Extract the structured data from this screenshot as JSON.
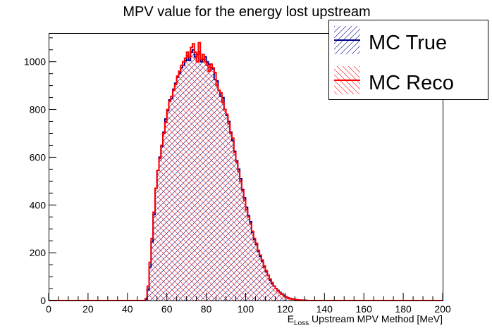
{
  "chart_data": {
    "type": "histogram",
    "title": "MPV value for the energy lost upstream",
    "xlabel": {
      "main": "E",
      "subscript": "Loss",
      "rest": " Upstream MPV Method [MeV]"
    },
    "ylabel": "",
    "xlim": [
      0,
      200
    ],
    "ylim": [
      0,
      1120
    ],
    "x_ticks": [
      0,
      20,
      40,
      60,
      80,
      100,
      120,
      140,
      160,
      180,
      200
    ],
    "y_ticks": [
      0,
      200,
      400,
      600,
      800,
      1000
    ],
    "bin_width": 1,
    "legend_position": "top-right",
    "series": [
      {
        "name": "MC True",
        "color": "#00008b",
        "fill": "hatch-forward",
        "x": [
          0,
          48,
          49,
          50,
          51,
          52,
          53,
          54,
          55,
          56,
          57,
          58,
          59,
          60,
          61,
          62,
          63,
          64,
          65,
          66,
          67,
          68,
          69,
          70,
          71,
          72,
          73,
          74,
          75,
          76,
          77,
          78,
          79,
          80,
          81,
          82,
          83,
          84,
          85,
          86,
          87,
          88,
          89,
          90,
          91,
          92,
          93,
          94,
          95,
          96,
          97,
          98,
          99,
          100,
          101,
          102,
          103,
          104,
          105,
          106,
          107,
          108,
          109,
          110,
          111,
          112,
          113,
          114,
          115,
          116,
          117,
          118,
          119,
          120,
          121,
          122,
          123,
          124,
          125,
          126,
          127,
          128,
          129,
          130,
          131,
          132,
          133,
          134,
          135,
          136,
          137,
          138,
          139,
          140,
          200
        ],
        "values": [
          0,
          0,
          5,
          45,
          140,
          245,
          360,
          470,
          545,
          600,
          645,
          705,
          760,
          795,
          840,
          845,
          885,
          910,
          935,
          950,
          975,
          985,
          1005,
          1025,
          1005,
          1040,
          1050,
          1020,
          1030,
          1040,
          1000,
          1010,
          1020,
          1000,
          990,
          975,
          970,
          925,
          920,
          880,
          855,
          850,
          800,
          775,
          750,
          705,
          670,
          625,
          585,
          550,
          510,
          465,
          430,
          390,
          355,
          330,
          285,
          255,
          235,
          205,
          185,
          165,
          140,
          120,
          105,
          85,
          70,
          60,
          50,
          42,
          34,
          28,
          22,
          16,
          12,
          9,
          7,
          5,
          4,
          3,
          2,
          2,
          1,
          1,
          0,
          0,
          0,
          0,
          0,
          0,
          0,
          0,
          0,
          0,
          0
        ]
      },
      {
        "name": "MC Reco",
        "color": "#ff0000",
        "fill": "hatch-backward",
        "x": [
          0,
          48,
          49,
          50,
          51,
          52,
          53,
          54,
          55,
          56,
          57,
          58,
          59,
          60,
          61,
          62,
          63,
          64,
          65,
          66,
          67,
          68,
          69,
          70,
          71,
          72,
          73,
          74,
          75,
          76,
          77,
          78,
          79,
          80,
          81,
          82,
          83,
          84,
          85,
          86,
          87,
          88,
          89,
          90,
          91,
          92,
          93,
          94,
          95,
          96,
          97,
          98,
          99,
          100,
          101,
          102,
          103,
          104,
          105,
          106,
          107,
          108,
          109,
          110,
          111,
          112,
          113,
          114,
          115,
          116,
          117,
          118,
          119,
          120,
          121,
          122,
          123,
          124,
          125,
          126,
          127,
          128,
          129,
          130,
          131,
          132,
          133,
          134,
          135,
          136,
          137,
          138,
          139,
          140,
          200
        ],
        "values": [
          0,
          0,
          8,
          60,
          160,
          260,
          370,
          470,
          545,
          595,
          650,
          700,
          745,
          800,
          835,
          855,
          880,
          905,
          940,
          960,
          985,
          1000,
          1015,
          1040,
          1020,
          1060,
          1075,
          1040,
          1000,
          1080,
          1010,
          1030,
          1000,
          985,
          960,
          990,
          975,
          955,
          900,
          880,
          870,
          830,
          800,
          780,
          740,
          700,
          680,
          620,
          580,
          540,
          500,
          460,
          420,
          380,
          350,
          320,
          290,
          260,
          240,
          210,
          190,
          170,
          145,
          125,
          105,
          90,
          75,
          60,
          50,
          40,
          32,
          26,
          20,
          15,
          11,
          8,
          6,
          5,
          4,
          3,
          2,
          1,
          1,
          1,
          0,
          0,
          0,
          0,
          0,
          0,
          0,
          0,
          0,
          0,
          0
        ]
      }
    ]
  }
}
